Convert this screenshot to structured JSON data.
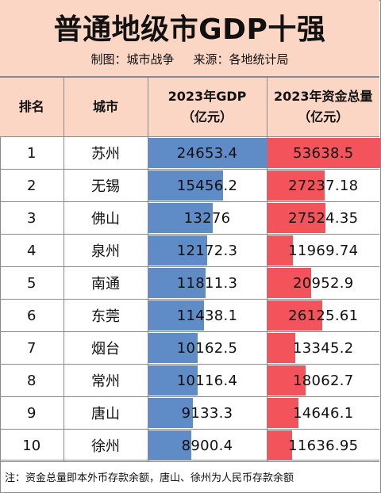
{
  "header": {
    "title": "普通地级市GDP十强",
    "maker": "制图：城市战争",
    "source": "来源：各地统计局"
  },
  "columns": {
    "rank": "排名",
    "city": "城市",
    "gdp_line1": "2023年GDP",
    "gdp_line2": "（亿元）",
    "fund_line1": "2023年资金总量",
    "fund_line2": "（亿元）"
  },
  "colors": {
    "header_bg": "#fbd6c5",
    "gdp_bar": "#5f8bc6",
    "fund_bar": "#f3545c"
  },
  "chart_data": {
    "type": "table",
    "title": "普通地级市GDP十强",
    "columns": [
      "排名",
      "城市",
      "2023年GDP（亿元）",
      "2023年资金总量（亿元）"
    ],
    "rows": [
      {
        "rank": "1",
        "city": "苏州",
        "gdp": 24653.4,
        "gdp_text": "24653.4",
        "fund": 53638.5,
        "fund_text": "53638.5"
      },
      {
        "rank": "2",
        "city": "无锡",
        "gdp": 15456.2,
        "gdp_text": "15456.2",
        "fund": 27237.18,
        "fund_text": "27237.18"
      },
      {
        "rank": "3",
        "city": "佛山",
        "gdp": 13276,
        "gdp_text": "13276",
        "fund": 27524.35,
        "fund_text": "27524.35"
      },
      {
        "rank": "4",
        "city": "泉州",
        "gdp": 12172.3,
        "gdp_text": "12172.3",
        "fund": 11969.74,
        "fund_text": "11969.74"
      },
      {
        "rank": "5",
        "city": "南通",
        "gdp": 11811.3,
        "gdp_text": "11811.3",
        "fund": 20952.9,
        "fund_text": "20952.9"
      },
      {
        "rank": "6",
        "city": "东莞",
        "gdp": 11438.1,
        "gdp_text": "11438.1",
        "fund": 26125.61,
        "fund_text": "26125.61"
      },
      {
        "rank": "7",
        "city": "烟台",
        "gdp": 10162.5,
        "gdp_text": "10162.5",
        "fund": 13345.2,
        "fund_text": "13345.2"
      },
      {
        "rank": "8",
        "city": "常州",
        "gdp": 10116.4,
        "gdp_text": "10116.4",
        "fund": 18062.7,
        "fund_text": "18062.7"
      },
      {
        "rank": "9",
        "city": "唐山",
        "gdp": 9133.3,
        "gdp_text": "9133.3",
        "fund": 14646.1,
        "fund_text": "14646.1"
      },
      {
        "rank": "10",
        "city": "徐州",
        "gdp": 8900.4,
        "gdp_text": "8900.4",
        "fund": 11636.95,
        "fund_text": "11636.95"
      }
    ]
  },
  "note": "注：资金总量即本外币存款余额，唐山、徐州为人民币存款余额"
}
